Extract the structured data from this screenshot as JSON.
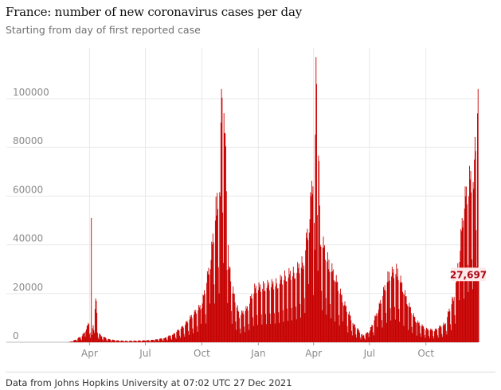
{
  "title": "France: number of new coronavirus cases per day",
  "subtitle": "Starting from day of first reported case",
  "source": "Data from Johns Hopkins University at 07:02 UTC 27 Dec 2021",
  "colors": {
    "bar": "#c70000",
    "grid": "#e8e8e8",
    "tick_text": "#8a8a8a",
    "callout_bg": "#fde9e9",
    "callout_text": "#ab0613"
  },
  "chart_data": {
    "type": "bar",
    "xlabel": "",
    "ylabel": "",
    "ylim": [
      0,
      117000
    ],
    "grid": true,
    "y_ticks": [
      0,
      20000,
      40000,
      60000,
      80000,
      100000
    ],
    "y_tick_labels": [
      "0",
      "20000",
      "40000",
      "60000",
      "80000",
      "100000"
    ],
    "x_ticks": [
      {
        "label": "Apr",
        "date": "2020-04-01"
      },
      {
        "label": "Jul",
        "date": "2020-07-01"
      },
      {
        "label": "Oct",
        "date": "2020-10-01"
      },
      {
        "label": "Jan",
        "date": "2021-01-01"
      },
      {
        "label": "Apr",
        "date": "2021-04-01"
      },
      {
        "label": "Jul",
        "date": "2021-07-01"
      },
      {
        "label": "Oct",
        "date": "2021-10-01"
      }
    ],
    "series": [
      {
        "start_date": "2020-01-24",
        "end_date": "2021-12-26",
        "points": [
          [
            "2020-02-25",
            0
          ],
          [
            "2020-03-01",
            200
          ],
          [
            "2020-03-10",
            1000
          ],
          [
            "2020-03-20",
            2500
          ],
          [
            "2020-03-26",
            4500
          ],
          [
            "2020-03-31",
            7500
          ],
          [
            "2020-04-03",
            4000
          ],
          [
            "2020-04-04",
            51000
          ],
          [
            "2020-04-05",
            3000
          ],
          [
            "2020-04-12",
            17000
          ],
          [
            "2020-04-14",
            4000
          ],
          [
            "2020-04-20",
            2500
          ],
          [
            "2020-05-01",
            1200
          ],
          [
            "2020-05-15",
            700
          ],
          [
            "2020-06-01",
            500
          ],
          [
            "2020-06-15",
            600
          ],
          [
            "2020-07-01",
            700
          ],
          [
            "2020-07-15",
            900
          ],
          [
            "2020-08-01",
            1600
          ],
          [
            "2020-08-15",
            3000
          ],
          [
            "2020-09-01",
            6000
          ],
          [
            "2020-09-15",
            10000
          ],
          [
            "2020-10-01",
            14000
          ],
          [
            "2020-10-15",
            30000
          ],
          [
            "2020-10-25",
            52000
          ],
          [
            "2020-10-31",
            60000
          ],
          [
            "2020-11-02",
            104000
          ],
          [
            "2020-11-07",
            86000
          ],
          [
            "2020-11-14",
            30000
          ],
          [
            "2020-11-20",
            20000
          ],
          [
            "2020-12-01",
            10000
          ],
          [
            "2020-12-15",
            13000
          ],
          [
            "2020-12-25",
            20000
          ],
          [
            "2021-01-10",
            21000
          ],
          [
            "2021-02-01",
            22000
          ],
          [
            "2021-02-15",
            25000
          ],
          [
            "2021-03-01",
            26000
          ],
          [
            "2021-03-15",
            30000
          ],
          [
            "2021-03-25",
            45000
          ],
          [
            "2021-03-31",
            64000
          ],
          [
            "2021-04-03",
            38000
          ],
          [
            "2021-04-05",
            117000
          ],
          [
            "2021-04-12",
            40000
          ],
          [
            "2021-04-25",
            30000
          ],
          [
            "2021-05-05",
            25000
          ],
          [
            "2021-05-20",
            15000
          ],
          [
            "2021-06-05",
            7000
          ],
          [
            "2021-06-20",
            2500
          ],
          [
            "2021-07-01",
            4000
          ],
          [
            "2021-07-15",
            12000
          ],
          [
            "2021-08-01",
            25000
          ],
          [
            "2021-08-15",
            27000
          ],
          [
            "2021-08-25",
            20000
          ],
          [
            "2021-09-01",
            15000
          ],
          [
            "2021-09-15",
            8000
          ],
          [
            "2021-10-01",
            5000
          ],
          [
            "2021-10-15",
            4500
          ],
          [
            "2021-11-01",
            7000
          ],
          [
            "2021-11-15",
            17000
          ],
          [
            "2021-11-25",
            33000
          ],
          [
            "2021-12-01",
            50000
          ],
          [
            "2021-12-10",
            60000
          ],
          [
            "2021-12-18",
            63000
          ],
          [
            "2021-12-24",
            94000
          ],
          [
            "2021-12-25",
            104000
          ],
          [
            "2021-12-26",
            27697
          ]
        ]
      }
    ],
    "annotation": {
      "label": "27,697",
      "date": "2021-12-26",
      "value": 27697
    }
  }
}
